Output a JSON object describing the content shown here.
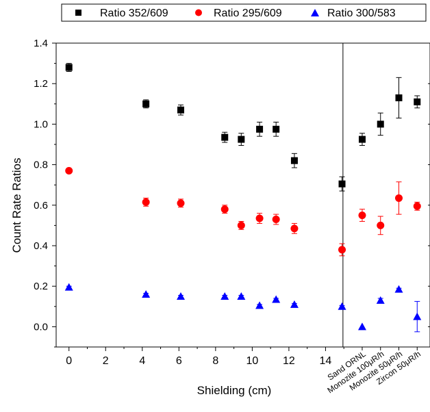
{
  "chart_data": {
    "type": "scatter",
    "title": "",
    "xlabel": "Shielding (cm)",
    "ylabel": "Count Rate Ratios",
    "xlim": [
      -0.7,
      19.7
    ],
    "ylim": [
      -0.1,
      1.4
    ],
    "x_ticks": [
      "0",
      "2",
      "4",
      "6",
      "8",
      "10",
      "12",
      "14"
    ],
    "y_ticks": [
      "0.0",
      "0.2",
      "0.4",
      "0.6",
      "0.8",
      "1.0",
      "1.2",
      "1.4"
    ],
    "divider_x": 14.95,
    "sample_categories": [
      {
        "x": 16.0,
        "label": "Sand ORNL"
      },
      {
        "x": 17.0,
        "label": "Monozite 100μR/h"
      },
      {
        "x": 18.0,
        "label": "Monozite 50μR/h"
      },
      {
        "x": 19.0,
        "label": "Zircon 50μR/h"
      }
    ],
    "legend_position": "top",
    "series": [
      {
        "name": "Ratio 352/609",
        "marker": "square",
        "color": "#000000",
        "points": [
          {
            "x": 0.0,
            "y": 1.28,
            "err": 0.02
          },
          {
            "x": 4.2,
            "y": 1.1,
            "err": 0.02
          },
          {
            "x": 6.1,
            "y": 1.07,
            "err": 0.025
          },
          {
            "x": 8.5,
            "y": 0.935,
            "err": 0.025
          },
          {
            "x": 9.4,
            "y": 0.925,
            "err": 0.03
          },
          {
            "x": 10.4,
            "y": 0.975,
            "err": 0.035
          },
          {
            "x": 11.3,
            "y": 0.975,
            "err": 0.035
          },
          {
            "x": 12.3,
            "y": 0.82,
            "err": 0.035
          },
          {
            "x": 14.9,
            "y": 0.705,
            "err": 0.035
          },
          {
            "x": 16.0,
            "y": 0.925,
            "err": 0.03
          },
          {
            "x": 17.0,
            "y": 1.0,
            "err": 0.055
          },
          {
            "x": 18.0,
            "y": 1.13,
            "err": 0.1
          },
          {
            "x": 19.0,
            "y": 1.11,
            "err": 0.03
          }
        ]
      },
      {
        "name": "Ratio 295/609",
        "marker": "circle",
        "color": "#ff0000",
        "points": [
          {
            "x": 0.0,
            "y": 0.77,
            "err": 0.01
          },
          {
            "x": 4.2,
            "y": 0.615,
            "err": 0.02
          },
          {
            "x": 6.1,
            "y": 0.61,
            "err": 0.02
          },
          {
            "x": 8.5,
            "y": 0.58,
            "err": 0.02
          },
          {
            "x": 9.4,
            "y": 0.5,
            "err": 0.02
          },
          {
            "x": 10.4,
            "y": 0.535,
            "err": 0.025
          },
          {
            "x": 11.3,
            "y": 0.53,
            "err": 0.025
          },
          {
            "x": 12.3,
            "y": 0.485,
            "err": 0.025
          },
          {
            "x": 14.9,
            "y": 0.38,
            "err": 0.03
          },
          {
            "x": 16.0,
            "y": 0.55,
            "err": 0.03
          },
          {
            "x": 17.0,
            "y": 0.5,
            "err": 0.045
          },
          {
            "x": 18.0,
            "y": 0.635,
            "err": 0.08
          },
          {
            "x": 19.0,
            "y": 0.595,
            "err": 0.02
          }
        ]
      },
      {
        "name": "Ratio 300/583",
        "marker": "triangle",
        "color": "#0000ff",
        "points": [
          {
            "x": 0.0,
            "y": 0.195,
            "err": 0.005
          },
          {
            "x": 4.2,
            "y": 0.16,
            "err": 0.005
          },
          {
            "x": 6.1,
            "y": 0.15,
            "err": 0.005
          },
          {
            "x": 8.5,
            "y": 0.15,
            "err": 0.005
          },
          {
            "x": 9.4,
            "y": 0.15,
            "err": 0.005
          },
          {
            "x": 10.4,
            "y": 0.105,
            "err": 0.005
          },
          {
            "x": 11.3,
            "y": 0.135,
            "err": 0.005
          },
          {
            "x": 12.3,
            "y": 0.11,
            "err": 0.005
          },
          {
            "x": 14.9,
            "y": 0.1,
            "err": 0.005
          },
          {
            "x": 16.0,
            "y": 0.0,
            "err": 0.0
          },
          {
            "x": 17.0,
            "y": 0.13,
            "err": 0.01
          },
          {
            "x": 18.0,
            "y": 0.185,
            "err": 0.005
          },
          {
            "x": 19.0,
            "y": 0.05,
            "err": 0.075
          }
        ]
      }
    ]
  }
}
